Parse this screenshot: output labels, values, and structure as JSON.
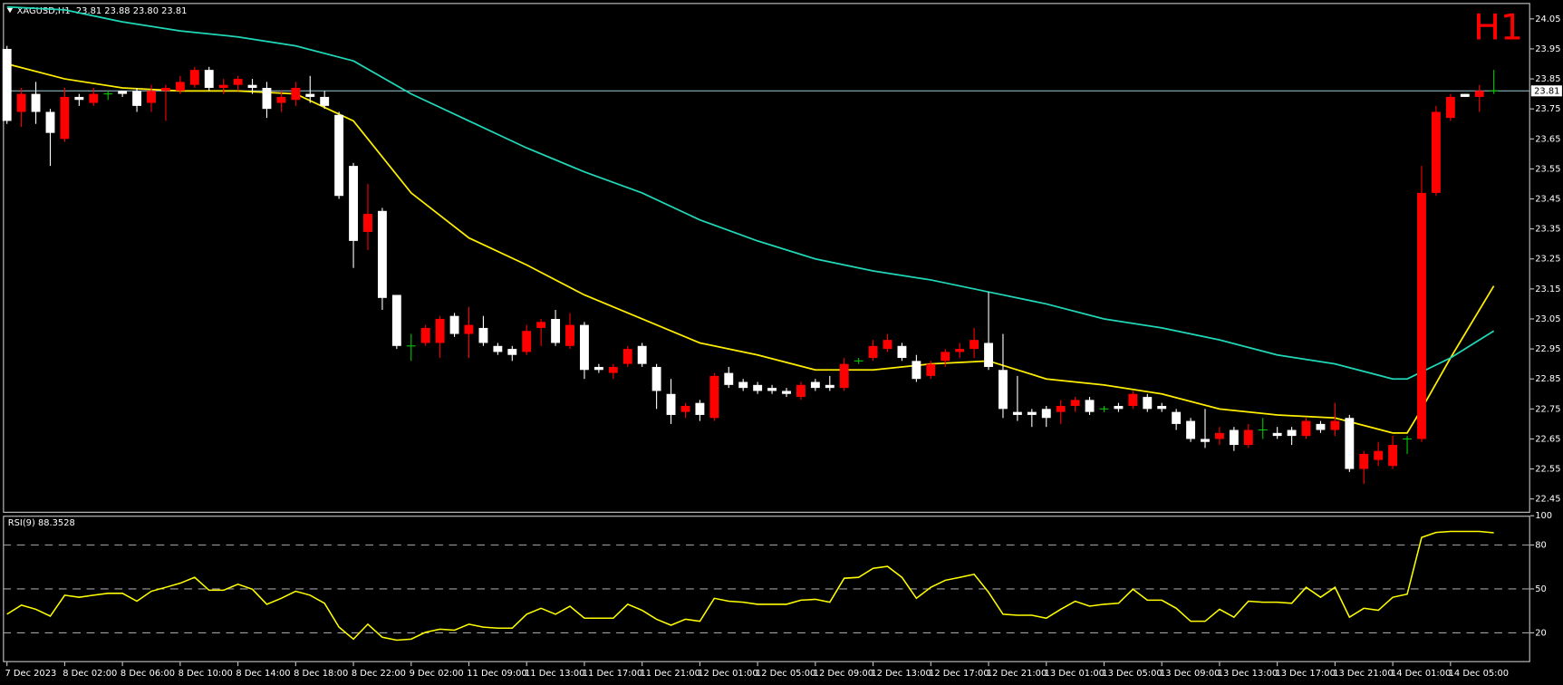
{
  "chart_data": [
    {
      "type": "candlestick",
      "title": "XAGUSD,H1  23.81 23.88 23.80 23.81",
      "timeframe_label": "H1",
      "categories": [
        "7 Dec 2023",
        null,
        null,
        null,
        "8 Dec 02:00",
        null,
        null,
        null,
        "8 Dec 06:00",
        null,
        null,
        null,
        "8 Dec 10:00",
        null,
        null,
        null,
        "8 Dec 14:00",
        null,
        null,
        null,
        "8 Dec 18:00",
        null,
        null,
        null,
        "8 Dec 22:00",
        null,
        null,
        null,
        "9 Dec 02:00",
        null,
        null,
        null,
        "11 Dec 09:00",
        null,
        null,
        null,
        "11 Dec 13:00",
        null,
        null,
        null,
        "11 Dec 17:00",
        null,
        null,
        null,
        "11 Dec 21:00",
        null,
        null,
        null,
        "12 Dec 01:00",
        null,
        null,
        null,
        "12 Dec 05:00",
        null,
        null,
        null,
        "12 Dec 09:00",
        null,
        null,
        null,
        "12 Dec 13:00",
        null,
        null,
        null,
        "12 Dec 17:00",
        null,
        null,
        null,
        "12 Dec 21:00",
        null,
        null,
        null,
        "13 Dec 01:00",
        null,
        null,
        null,
        "13 Dec 05:00",
        null,
        null,
        null,
        "13 Dec 09:00",
        null,
        null,
        null,
        "13 Dec 13:00",
        null,
        null,
        null,
        "13 Dec 17:00",
        null,
        null,
        null,
        "13 Dec 21:00",
        null,
        null,
        null,
        "14 Dec 01:00",
        null,
        null,
        null,
        "14 Dec 05:00",
        null,
        null,
        null
      ],
      "open": [
        23.95,
        23.74,
        23.8,
        23.74,
        23.65,
        23.79,
        23.77,
        23.8,
        23.81,
        23.81,
        23.77,
        23.81,
        23.81,
        23.83,
        23.88,
        23.82,
        23.83,
        23.83,
        23.82,
        23.77,
        23.78,
        23.8,
        23.79,
        23.73,
        23.56,
        23.34,
        23.41,
        23.13,
        22.96,
        22.97,
        22.97,
        23.06,
        23.0,
        23.02,
        22.96,
        22.95,
        22.94,
        23.02,
        23.05,
        22.96,
        23.03,
        22.89,
        22.87,
        22.9,
        22.96,
        22.89,
        22.8,
        22.74,
        22.77,
        22.72,
        22.87,
        22.84,
        22.83,
        22.82,
        22.81,
        22.79,
        22.84,
        22.83,
        22.82,
        22.91,
        22.92,
        22.95,
        22.96,
        22.91,
        22.86,
        22.91,
        22.94,
        22.95,
        22.97,
        22.88,
        22.74,
        22.74,
        22.75,
        22.74,
        22.76,
        22.78,
        22.75,
        22.76,
        22.76,
        22.79,
        22.76,
        22.74,
        22.71,
        22.65,
        22.65,
        22.68,
        22.63,
        22.68,
        22.67,
        22.68,
        22.66,
        22.7,
        22.68,
        22.72,
        22.55,
        22.58,
        22.56,
        22.65,
        22.65,
        23.47,
        23.72,
        23.8,
        23.79,
        23.81
      ],
      "high": [
        23.96,
        23.82,
        23.84,
        23.75,
        23.82,
        23.8,
        23.82,
        23.81,
        23.81,
        23.82,
        23.83,
        23.83,
        23.86,
        23.89,
        23.89,
        23.85,
        23.86,
        23.85,
        23.84,
        23.81,
        23.84,
        23.86,
        23.81,
        23.74,
        23.57,
        23.5,
        23.42,
        23.13,
        23.0,
        23.03,
        23.06,
        23.07,
        23.09,
        23.06,
        22.97,
        22.96,
        23.03,
        23.05,
        23.08,
        23.07,
        23.04,
        22.9,
        22.9,
        22.96,
        22.97,
        22.9,
        22.85,
        22.77,
        22.78,
        22.87,
        22.89,
        22.85,
        22.84,
        22.83,
        22.82,
        22.84,
        22.85,
        22.86,
        22.92,
        22.92,
        22.98,
        23.0,
        22.97,
        22.93,
        22.91,
        22.95,
        22.97,
        23.02,
        23.14,
        23.0,
        22.86,
        22.75,
        22.76,
        22.78,
        22.79,
        22.79,
        22.76,
        22.77,
        22.81,
        22.8,
        22.77,
        22.75,
        22.72,
        22.75,
        22.69,
        22.69,
        22.7,
        22.72,
        22.69,
        22.69,
        22.72,
        22.71,
        22.77,
        22.73,
        22.61,
        22.64,
        22.66,
        22.66,
        23.56,
        23.76,
        23.8,
        23.8,
        23.83,
        23.88
      ],
      "low": [
        23.7,
        23.69,
        23.7,
        23.56,
        23.64,
        23.76,
        23.76,
        23.78,
        23.79,
        23.74,
        23.74,
        23.71,
        23.8,
        23.82,
        23.81,
        23.8,
        23.81,
        23.8,
        23.72,
        23.74,
        23.76,
        23.77,
        23.75,
        23.45,
        23.22,
        23.28,
        23.08,
        22.95,
        22.91,
        22.96,
        22.92,
        22.99,
        22.92,
        22.96,
        22.93,
        22.91,
        22.93,
        22.96,
        22.96,
        22.95,
        22.85,
        22.87,
        22.85,
        22.89,
        22.89,
        22.75,
        22.7,
        22.72,
        22.71,
        22.71,
        22.82,
        22.81,
        22.8,
        22.8,
        22.79,
        22.78,
        22.81,
        22.81,
        22.81,
        22.9,
        22.91,
        22.94,
        22.91,
        22.84,
        22.85,
        22.89,
        22.92,
        22.92,
        22.88,
        22.72,
        22.71,
        22.69,
        22.69,
        22.7,
        22.74,
        22.73,
        22.74,
        22.74,
        22.75,
        22.74,
        22.74,
        22.68,
        22.64,
        22.62,
        22.63,
        22.61,
        22.62,
        22.65,
        22.65,
        22.63,
        22.65,
        22.67,
        22.66,
        22.54,
        22.5,
        22.56,
        22.55,
        22.6,
        22.64,
        23.46,
        23.71,
        23.79,
        23.74,
        23.8
      ],
      "close": [
        23.71,
        23.8,
        23.74,
        23.67,
        23.79,
        23.78,
        23.8,
        23.8,
        23.8,
        23.76,
        23.81,
        23.82,
        23.84,
        23.88,
        23.82,
        23.83,
        23.85,
        23.82,
        23.75,
        23.79,
        23.82,
        23.79,
        23.76,
        23.46,
        23.31,
        23.4,
        23.12,
        22.96,
        22.96,
        23.02,
        23.05,
        23.0,
        23.03,
        22.97,
        22.94,
        22.93,
        23.01,
        23.04,
        22.97,
        23.03,
        22.88,
        22.88,
        22.89,
        22.95,
        22.9,
        22.81,
        22.73,
        22.76,
        22.73,
        22.86,
        22.83,
        22.82,
        22.81,
        22.81,
        22.8,
        22.83,
        22.82,
        22.82,
        22.9,
        22.91,
        22.96,
        22.98,
        22.92,
        22.85,
        22.9,
        22.94,
        22.95,
        22.98,
        22.89,
        22.75,
        22.73,
        22.73,
        22.72,
        22.76,
        22.78,
        22.74,
        22.75,
        22.75,
        22.8,
        22.75,
        22.75,
        22.7,
        22.65,
        22.64,
        22.67,
        22.63,
        22.68,
        22.68,
        22.66,
        22.66,
        22.71,
        22.68,
        22.71,
        22.55,
        22.6,
        22.61,
        22.63,
        22.65,
        23.47,
        23.74,
        23.79,
        23.79,
        23.81,
        23.81
      ],
      "up_color": "#ff0000",
      "down_color": "#ffffff",
      "doji_color": "#00c800",
      "ylim": [
        22.404,
        24.103
      ],
      "yticks": [
        24.05,
        23.95,
        23.85,
        23.75,
        23.65,
        23.55,
        23.45,
        23.35,
        23.25,
        23.15,
        23.05,
        22.95,
        22.85,
        22.75,
        22.65,
        22.55,
        22.45
      ],
      "current_price": 23.81,
      "current_price_color": "#8fb3bf",
      "overlays": [
        {
          "color": "#ffee00",
          "x": [
            0,
            4,
            8,
            12,
            16,
            20,
            24,
            28,
            32,
            36,
            40,
            44,
            48,
            52,
            56,
            60,
            64,
            68,
            72,
            76,
            80,
            84,
            88,
            92,
            96,
            97,
            98,
            100,
            103
          ],
          "values": [
            23.9,
            23.85,
            23.82,
            23.81,
            23.81,
            23.8,
            23.71,
            23.47,
            23.32,
            23.23,
            23.13,
            23.05,
            22.97,
            22.93,
            22.88,
            22.88,
            22.9,
            22.91,
            22.85,
            22.83,
            22.8,
            22.75,
            22.73,
            22.72,
            22.67,
            22.67,
            22.75,
            22.92,
            23.16
          ]
        },
        {
          "color": "#20d8b8",
          "x": [
            0,
            4,
            8,
            12,
            16,
            20,
            24,
            28,
            32,
            36,
            40,
            44,
            48,
            52,
            56,
            60,
            64,
            68,
            72,
            76,
            80,
            84,
            88,
            92,
            96,
            97,
            100,
            103
          ],
          "values": [
            24.09,
            24.08,
            24.04,
            24.01,
            23.99,
            23.96,
            23.91,
            23.8,
            23.71,
            23.62,
            23.54,
            23.47,
            23.38,
            23.31,
            23.25,
            23.21,
            23.18,
            23.14,
            23.1,
            23.05,
            23.02,
            22.98,
            22.93,
            22.9,
            22.85,
            22.85,
            22.92,
            23.01
          ]
        }
      ]
    },
    {
      "type": "line",
      "title": "RSI(9) 88.3528",
      "color": "#ffff00",
      "values": [
        32.7,
        38.9,
        36.1,
        31.4,
        45.7,
        44.3,
        45.7,
        47.0,
        47.0,
        41.6,
        48.4,
        51.1,
        53.9,
        57.9,
        49.1,
        49.1,
        53.2,
        49.8,
        39.5,
        43.6,
        48.4,
        45.7,
        40.2,
        23.9,
        15.7,
        25.9,
        17.0,
        15.0,
        15.7,
        20.4,
        22.5,
        21.8,
        25.9,
        23.9,
        23.2,
        23.2,
        32.7,
        36.8,
        32.7,
        38.2,
        30.0,
        30.0,
        30.0,
        39.5,
        35.4,
        29.3,
        25.2,
        29.3,
        27.9,
        43.6,
        41.6,
        40.9,
        39.5,
        39.5,
        39.5,
        42.3,
        42.9,
        40.9,
        57.3,
        57.9,
        64.1,
        65.4,
        57.9,
        43.6,
        51.1,
        55.9,
        57.9,
        60.0,
        47.7,
        32.7,
        32.0,
        32.0,
        30.0,
        36.1,
        41.6,
        38.2,
        39.5,
        40.2,
        49.8,
        42.3,
        42.3,
        36.8,
        27.9,
        27.9,
        36.1,
        30.7,
        41.6,
        40.9,
        40.9,
        40.2,
        51.1,
        44.3,
        51.1,
        30.7,
        36.8,
        35.4,
        44.3,
        46.4,
        85.2,
        88.6,
        89.3,
        89.3,
        89.3,
        88.3528
      ],
      "ylim": [
        0,
        100
      ],
      "yticks": [
        100,
        80,
        50,
        20
      ],
      "grid": true,
      "grid_color": "#a0a0a0"
    }
  ]
}
